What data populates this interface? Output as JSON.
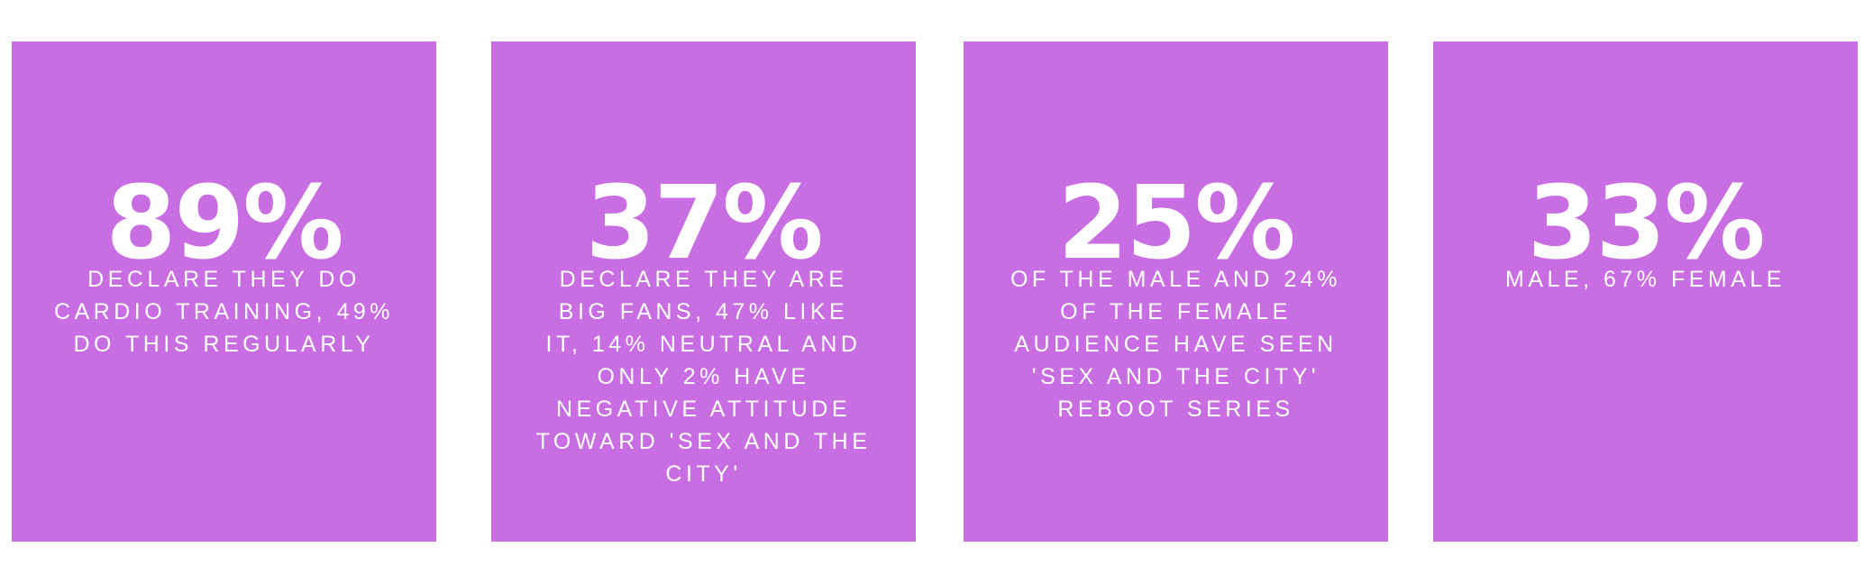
{
  "cards": [
    {
      "stat": "89%",
      "lines": [
        "DECLARE THEY DO",
        "CARDIO TRAINING, 49%",
        "DO THIS REGULARLY"
      ]
    },
    {
      "stat": "37%",
      "lines": [
        "DECLARE THEY ARE",
        "BIG FANS, 47% LIKE",
        "IT, 14% NEUTRAL AND",
        "ONLY 2% HAVE",
        "NEGATIVE ATTITUDE",
        "TOWARD 'SEX AND THE",
        "CITY'"
      ]
    },
    {
      "stat": "25%",
      "lines": [
        "OF THE MALE AND 24%",
        "OF THE FEMALE",
        "AUDIENCE HAVE SEEN",
        "'SEX AND THE CITY'",
        "REBOOT SERIES"
      ]
    },
    {
      "stat": "33%",
      "lines": [
        "MALE, 67% FEMALE"
      ]
    }
  ]
}
